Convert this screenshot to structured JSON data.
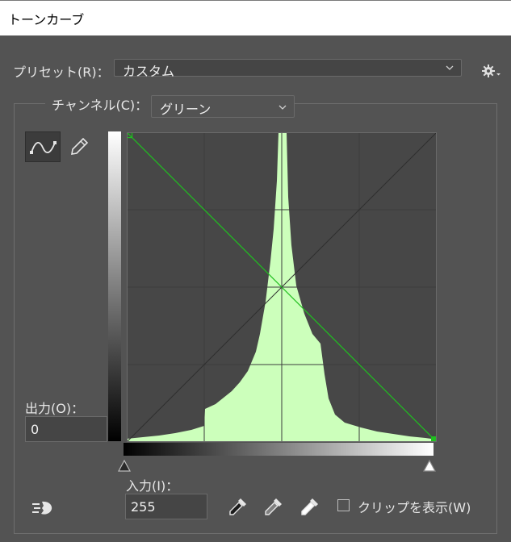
{
  "window": {
    "title": "トーンカーブ"
  },
  "preset": {
    "label": "プリセット(R)：",
    "value": "カスタム"
  },
  "channel": {
    "label": "チャンネル(C)：",
    "value": "グリーン"
  },
  "output": {
    "label": "出力(O)：",
    "value": "0"
  },
  "input": {
    "label": "入力(I)：",
    "value": "255"
  },
  "clip": {
    "label": "クリップを表示(W)",
    "checked": false
  },
  "curve": {
    "points": [
      [
        0,
        255
      ],
      [
        255,
        0
      ]
    ],
    "color": "#1fbf1f",
    "histogram_color": "#ccffbb"
  },
  "icons": {
    "settings": "gear-icon",
    "curve_tool": "curve-point-icon",
    "pencil_tool": "pencil-icon",
    "auto": "auto-icon",
    "eyedroppers": [
      "black-eyedropper-icon",
      "gray-eyedropper-icon",
      "white-eyedropper-icon"
    ]
  }
}
